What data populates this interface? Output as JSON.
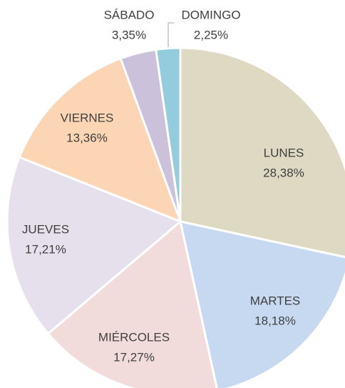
{
  "chart_data": {
    "type": "pie",
    "categories": [
      "LUNES",
      "MARTES",
      "MIÉRCOLES",
      "JUEVES",
      "VIERNES",
      "SÁBADO",
      "DOMINGO"
    ],
    "values": [
      28.38,
      18.18,
      17.27,
      17.21,
      13.36,
      3.35,
      2.25
    ],
    "value_labels": [
      "28,38%",
      "18,18%",
      "17,27%",
      "17,21%",
      "13,36%",
      "3,35%",
      "2,25%"
    ],
    "colors": [
      "#ddd9c3",
      "#c6d9f1",
      "#f2dcdb",
      "#e5e0ec",
      "#fcd5b5",
      "#ccc1da",
      "#93cddd"
    ]
  }
}
